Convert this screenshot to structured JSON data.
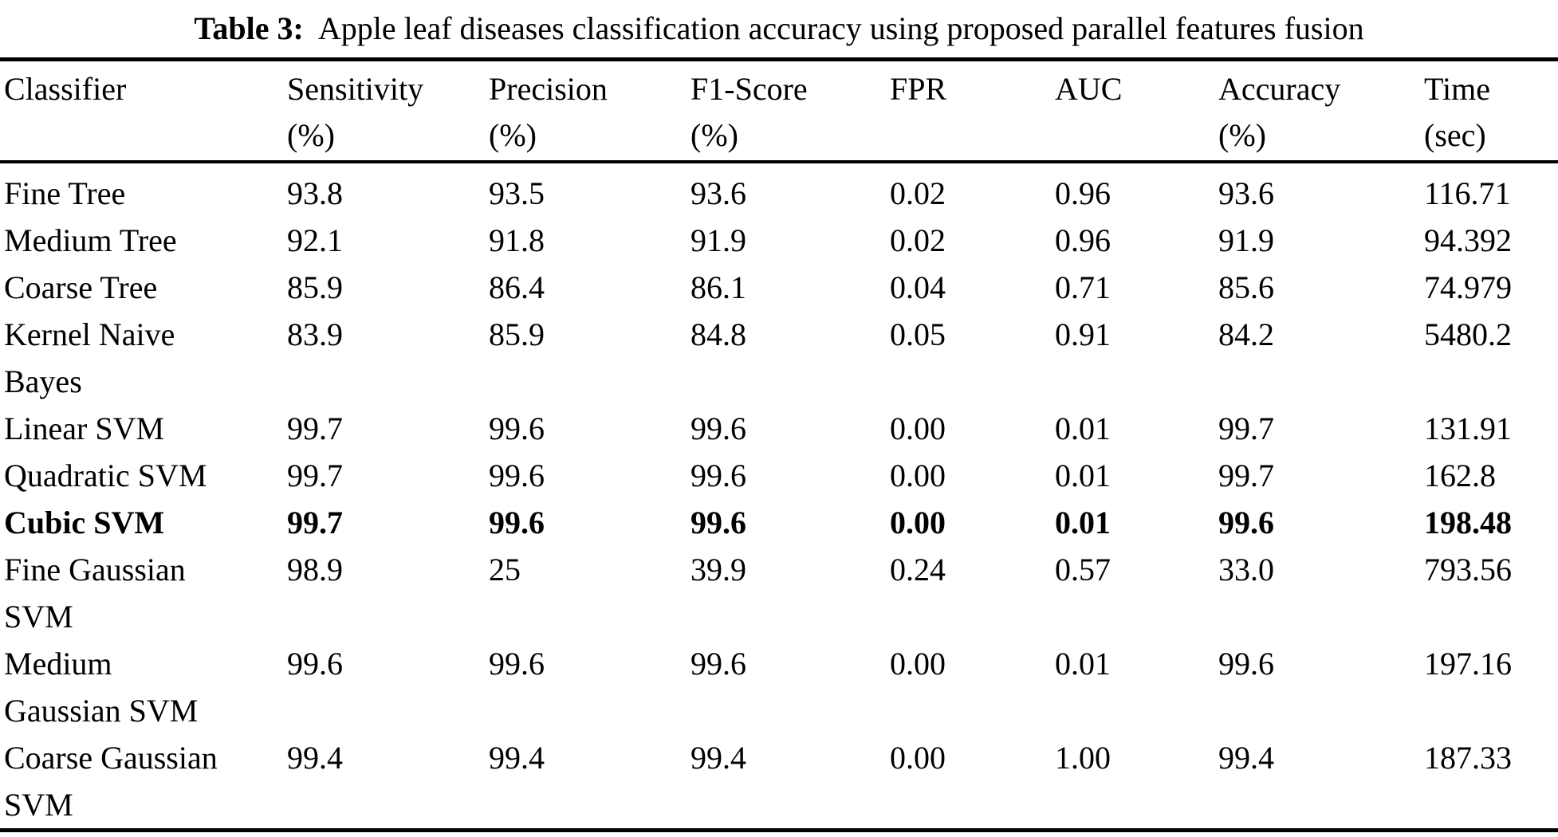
{
  "title": {
    "label": "Table 3:",
    "text": "Apple leaf diseases classification accuracy using proposed parallel features fusion"
  },
  "colors": {
    "text": "#000000",
    "background": "#ffffff",
    "rule": "#000000"
  },
  "table": {
    "columns": [
      {
        "key": "classifier",
        "label": "Classifier",
        "unit": ""
      },
      {
        "key": "sensitivity",
        "label": "Sensitivity",
        "unit": "(%)"
      },
      {
        "key": "precision",
        "label": "Precision",
        "unit": "(%)"
      },
      {
        "key": "f1_score",
        "label": "F1-Score",
        "unit": "(%)"
      },
      {
        "key": "fpr",
        "label": "FPR",
        "unit": ""
      },
      {
        "key": "auc",
        "label": "AUC",
        "unit": ""
      },
      {
        "key": "accuracy",
        "label": "Accuracy",
        "unit": "(%)"
      },
      {
        "key": "time",
        "label": "Time",
        "unit": "(sec)"
      }
    ],
    "rows": [
      {
        "classifier": "Fine Tree",
        "sensitivity": "93.8",
        "precision": "93.5",
        "f1_score": "93.6",
        "fpr": "0.02",
        "auc": "0.96",
        "accuracy": "93.6",
        "time": "116.71",
        "emphasis": false
      },
      {
        "classifier": "Medium Tree",
        "sensitivity": "92.1",
        "precision": "91.8",
        "f1_score": "91.9",
        "fpr": "0.02",
        "auc": "0.96",
        "accuracy": "91.9",
        "time": "94.392",
        "emphasis": false
      },
      {
        "classifier": "Coarse Tree",
        "sensitivity": "85.9",
        "precision": "86.4",
        "f1_score": "86.1",
        "fpr": "0.04",
        "auc": "0.71",
        "accuracy": "85.6",
        "time": "74.979",
        "emphasis": false
      },
      {
        "classifier": "Kernel Naive Bayes",
        "sensitivity": "83.9",
        "precision": "85.9",
        "f1_score": "84.8",
        "fpr": "0.05",
        "auc": "0.91",
        "accuracy": "84.2",
        "time": "5480.2",
        "emphasis": false
      },
      {
        "classifier": "Linear SVM",
        "sensitivity": "99.7",
        "precision": "99.6",
        "f1_score": "99.6",
        "fpr": "0.00",
        "auc": "0.01",
        "accuracy": "99.7",
        "time": "131.91",
        "emphasis": false
      },
      {
        "classifier": "Quadratic SVM",
        "sensitivity": "99.7",
        "precision": "99.6",
        "f1_score": "99.6",
        "fpr": "0.00",
        "auc": "0.01",
        "accuracy": "99.7",
        "time": "162.8",
        "emphasis": false
      },
      {
        "classifier": "Cubic SVM",
        "sensitivity": "99.7",
        "precision": "99.6",
        "f1_score": "99.6",
        "fpr": "0.00",
        "auc": "0.01",
        "accuracy": "99.6",
        "time": "198.48",
        "emphasis": true
      },
      {
        "classifier": "Fine Gaussian SVM",
        "sensitivity": "98.9",
        "precision": "25",
        "f1_score": "39.9",
        "fpr": "0.24",
        "auc": "0.57",
        "accuracy": "33.0",
        "time": "793.56",
        "emphasis": false
      },
      {
        "classifier": "Medium Gaussian SVM",
        "sensitivity": "99.6",
        "precision": "99.6",
        "f1_score": "99.6",
        "fpr": "0.00",
        "auc": "0.01",
        "accuracy": "99.6",
        "time": "197.16",
        "emphasis": false
      },
      {
        "classifier": "Coarse Gaussian SVM",
        "sensitivity": "99.4",
        "precision": "99.4",
        "f1_score": "99.4",
        "fpr": "0.00",
        "auc": "1.00",
        "accuracy": "99.4",
        "time": "187.33",
        "emphasis": false
      }
    ]
  }
}
